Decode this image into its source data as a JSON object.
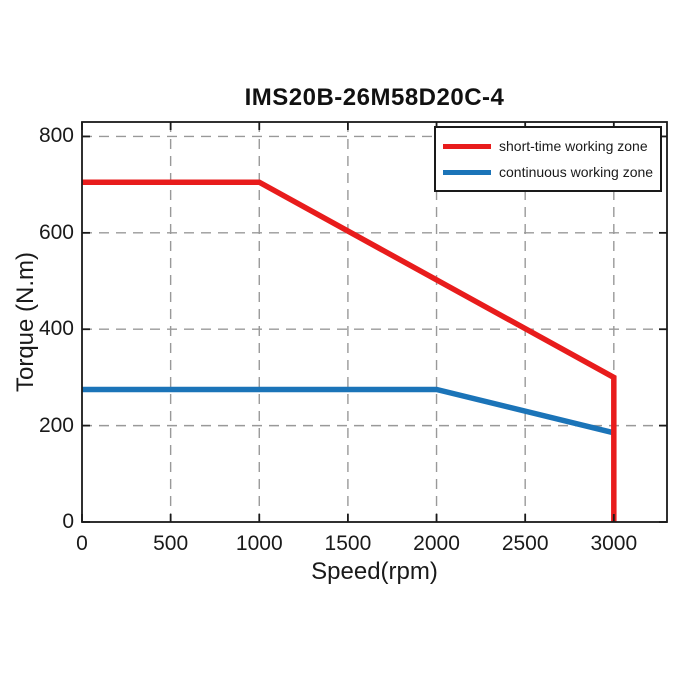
{
  "title": "IMS20B-26M58D20C-4",
  "colors": {
    "short_time_zone": "#e81c1c",
    "continuous_zone": "#1b74b8",
    "axes": "#1a1a1a",
    "grid": "#999999"
  },
  "legend": {
    "entries": [
      {
        "label": "short-time working zone",
        "color": "#e81c1c"
      },
      {
        "label": "continuous working zone",
        "color": "#1b74b8"
      }
    ]
  },
  "chart_data": {
    "type": "line",
    "title": "IMS20B-26M58D20C-4",
    "xlabel": "Speed(rpm)",
    "ylabel": "Torque (N.m)",
    "xlim": [
      0,
      3300
    ],
    "ylim": [
      0,
      830
    ],
    "xticks": [
      0,
      500,
      1000,
      1500,
      2000,
      2500,
      3000
    ],
    "yticks": [
      0,
      200,
      400,
      600,
      800
    ],
    "grid": "dashed-major-both-axes",
    "legend_position": "top-right-inside",
    "series": [
      {
        "name": "short-time working zone",
        "color": "#e81c1c",
        "points": [
          [
            0,
            705
          ],
          [
            1000,
            705
          ],
          [
            3000,
            300
          ],
          [
            3000,
            0
          ]
        ]
      },
      {
        "name": "continuous working zone",
        "color": "#1b74b8",
        "points": [
          [
            0,
            275
          ],
          [
            2000,
            275
          ],
          [
            3000,
            185
          ]
        ]
      }
    ]
  }
}
